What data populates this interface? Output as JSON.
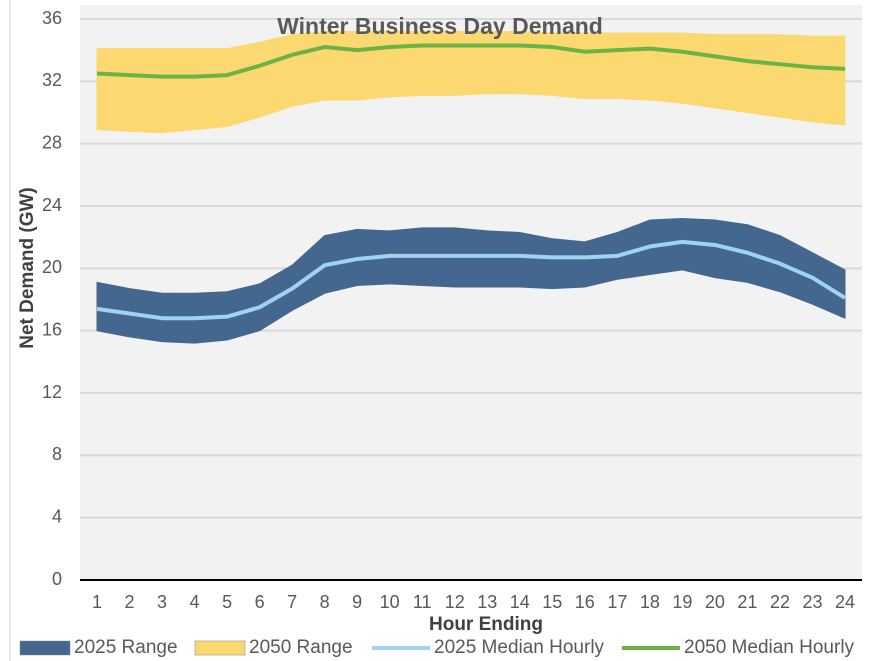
{
  "chart_data": {
    "type": "line",
    "title": "Winter Business Day Demand",
    "x_label": "Hour Ending",
    "y_label": "Net Demand (GW)",
    "categories": [
      1,
      2,
      3,
      4,
      5,
      6,
      7,
      8,
      9,
      10,
      11,
      12,
      13,
      14,
      15,
      16,
      17,
      18,
      19,
      20,
      21,
      22,
      23,
      24
    ],
    "ylim": [
      0,
      36
    ],
    "yticks": [
      0,
      4,
      8,
      12,
      16,
      20,
      24,
      28,
      32,
      36
    ],
    "grid": true,
    "legend": "bottom",
    "series": [
      {
        "name": "2025 Range",
        "color": "#44678f",
        "kind": "band",
        "high": [
          19.1,
          18.7,
          18.4,
          18.4,
          18.5,
          19.0,
          20.2,
          22.1,
          22.5,
          22.4,
          22.6,
          22.6,
          22.4,
          22.3,
          21.9,
          21.7,
          22.3,
          23.1,
          23.2,
          23.1,
          22.8,
          22.1,
          21.0,
          19.9
        ],
        "low": [
          16.0,
          15.6,
          15.3,
          15.2,
          15.4,
          16.0,
          17.3,
          18.4,
          18.9,
          19.0,
          18.9,
          18.8,
          18.8,
          18.8,
          18.7,
          18.8,
          19.3,
          19.6,
          19.9,
          19.4,
          19.1,
          18.5,
          17.7,
          16.8
        ]
      },
      {
        "name": "2050 Range",
        "color": "#fbd870",
        "kind": "band",
        "high": [
          34.1,
          34.1,
          34.1,
          34.1,
          34.1,
          34.5,
          35.0,
          35.2,
          35.2,
          35.2,
          35.2,
          35.2,
          35.2,
          35.2,
          35.1,
          35.1,
          35.1,
          35.1,
          35.1,
          35.0,
          35.0,
          35.0,
          34.9,
          34.9
        ],
        "low": [
          28.9,
          28.8,
          28.7,
          28.9,
          29.1,
          29.7,
          30.4,
          30.8,
          30.8,
          31.0,
          31.1,
          31.1,
          31.2,
          31.2,
          31.1,
          30.9,
          30.9,
          30.8,
          30.6,
          30.3,
          30.0,
          29.7,
          29.4,
          29.2
        ]
      },
      {
        "name": "2025 Median Hourly",
        "color": "#9fd4f0",
        "kind": "line",
        "values": [
          17.4,
          17.1,
          16.8,
          16.8,
          16.9,
          17.5,
          18.7,
          20.2,
          20.6,
          20.8,
          20.8,
          20.8,
          20.8,
          20.8,
          20.7,
          20.7,
          20.8,
          21.4,
          21.7,
          21.5,
          21.0,
          20.3,
          19.4,
          18.1
        ]
      },
      {
        "name": "2050 Median Hourly",
        "color": "#6ab344",
        "kind": "line",
        "values": [
          32.5,
          32.4,
          32.3,
          32.3,
          32.4,
          33.0,
          33.7,
          34.2,
          34.0,
          34.2,
          34.3,
          34.3,
          34.3,
          34.3,
          34.2,
          33.9,
          34.0,
          34.1,
          33.9,
          33.6,
          33.3,
          33.1,
          32.9,
          32.8
        ]
      }
    ]
  }
}
